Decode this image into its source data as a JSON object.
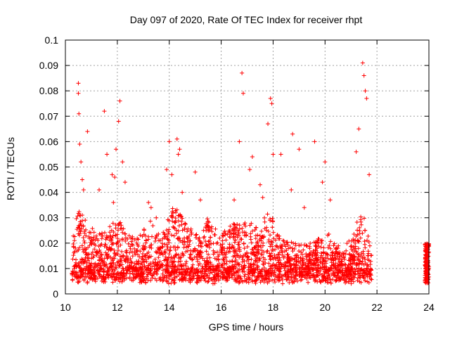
{
  "chart_data": {
    "type": "scatter",
    "title": "Day 097 of 2020, Rate Of TEC Index for receiver rhpt",
    "xlabel": "GPS time / hours",
    "ylabel": "ROTI / TECUs",
    "xlim": [
      10,
      24
    ],
    "ylim": [
      0,
      0.1
    ],
    "xticks": [
      "10",
      "12",
      "14",
      "16",
      "18",
      "20",
      "22",
      "24"
    ],
    "yticks": [
      "0",
      "0.01",
      "0.02",
      "0.03",
      "0.04",
      "0.05",
      "0.06",
      "0.07",
      "0.08",
      "0.09",
      "0.1"
    ],
    "grid": true,
    "marker": "+",
    "color": "#ff0000",
    "series": [
      {
        "x": [
          10.5,
          10.5,
          10.52,
          10.55,
          10.6,
          10.65,
          10.7,
          10.85,
          11.3,
          11.5,
          11.6,
          11.8,
          11.85,
          11.9,
          11.95,
          12.05,
          12.1,
          12.2,
          12.3,
          13.2,
          13.3,
          13.5,
          13.9,
          14.0,
          14.1,
          14.3,
          14.35,
          14.4,
          14.5,
          15.0,
          15.2,
          16.5,
          16.7,
          16.8,
          16.85,
          17.1,
          17.2,
          17.5,
          17.6,
          17.8,
          17.9,
          17.95,
          18.0,
          18.3,
          18.7,
          18.75,
          19.0,
          19.2,
          19.6,
          19.9,
          20.0,
          20.2,
          21.2,
          21.3,
          21.45,
          21.5,
          21.55,
          21.6,
          21.7
        ],
        "y": [
          0.083,
          0.079,
          0.071,
          0.059,
          0.052,
          0.045,
          0.041,
          0.064,
          0.041,
          0.072,
          0.055,
          0.047,
          0.036,
          0.046,
          0.057,
          0.068,
          0.076,
          0.052,
          0.044,
          0.036,
          0.034,
          0.03,
          0.049,
          0.06,
          0.047,
          0.061,
          0.055,
          0.057,
          0.04,
          0.048,
          0.037,
          0.037,
          0.06,
          0.087,
          0.079,
          0.049,
          0.054,
          0.043,
          0.038,
          0.067,
          0.077,
          0.075,
          0.055,
          0.055,
          0.041,
          0.063,
          0.057,
          0.034,
          0.06,
          0.044,
          0.052,
          0.037,
          0.056,
          0.065,
          0.091,
          0.086,
          0.08,
          0.077,
          0.047
        ]
      }
    ]
  }
}
